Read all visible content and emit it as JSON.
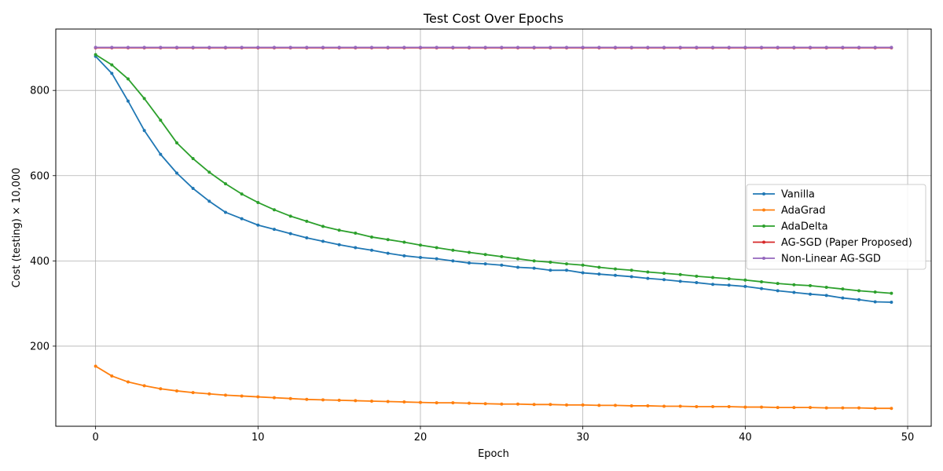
{
  "chart_data": {
    "type": "line",
    "title": "Test Cost Over Epochs",
    "xlabel": "Epoch",
    "ylabel": "Cost (testing) × 10,000",
    "xlim": [
      -2.45,
      51.45
    ],
    "ylim": [
      12,
      944
    ],
    "xticks": [
      0,
      10,
      20,
      30,
      40,
      50
    ],
    "yticks": [
      200,
      400,
      600,
      800
    ],
    "grid": true,
    "legend": "center-right",
    "x": [
      0,
      1,
      2,
      3,
      4,
      5,
      6,
      7,
      8,
      9,
      10,
      11,
      12,
      13,
      14,
      15,
      16,
      17,
      18,
      19,
      20,
      21,
      22,
      23,
      24,
      25,
      26,
      27,
      28,
      29,
      30,
      31,
      32,
      33,
      34,
      35,
      36,
      37,
      38,
      39,
      40,
      41,
      42,
      43,
      44,
      45,
      46,
      47,
      48,
      49
    ],
    "series": [
      {
        "name": "Vanilla",
        "color": "#1f77b4",
        "values": [
          880,
          840,
          775,
          706,
          650,
          606,
          570,
          540,
          514,
          499,
          484,
          474,
          464,
          454,
          446,
          438,
          431,
          425,
          418,
          412,
          408,
          405,
          400,
          395,
          393,
          390,
          385,
          383,
          378,
          378,
          372,
          369,
          366,
          363,
          359,
          356,
          352,
          349,
          345,
          343,
          340,
          335,
          330,
          326,
          322,
          319,
          313,
          309,
          304,
          303
        ]
      },
      {
        "name": "AdaGrad",
        "color": "#ff7f0e",
        "values": [
          153,
          130,
          116,
          107,
          100,
          95,
          91,
          88,
          85,
          83,
          81,
          79,
          77,
          75,
          74,
          73,
          72,
          71,
          70,
          69,
          68,
          67,
          67,
          66,
          65,
          64,
          64,
          63,
          63,
          62,
          62,
          61,
          61,
          60,
          60,
          59,
          59,
          58,
          58,
          58,
          57,
          57,
          56,
          56,
          56,
          55,
          55,
          55,
          54,
          54
        ]
      },
      {
        "name": "AdaDelta",
        "color": "#2ca02c",
        "values": [
          884,
          860,
          827,
          781,
          730,
          677,
          640,
          608,
          581,
          557,
          537,
          520,
          505,
          493,
          481,
          472,
          465,
          456,
          450,
          444,
          437,
          431,
          425,
          420,
          415,
          410,
          405,
          400,
          397,
          393,
          390,
          385,
          381,
          378,
          374,
          371,
          368,
          364,
          361,
          358,
          355,
          351,
          347,
          344,
          342,
          338,
          334,
          330,
          327,
          324
        ]
      },
      {
        "name": "AG-SGD (Paper Proposed)",
        "color": "#d62728",
        "values": [
          900,
          900,
          900,
          900,
          900,
          900,
          900,
          900,
          900,
          900,
          900,
          900,
          900,
          900,
          900,
          900,
          900,
          900,
          900,
          900,
          900,
          900,
          900,
          900,
          900,
          900,
          900,
          900,
          900,
          900,
          900,
          900,
          900,
          900,
          900,
          900,
          900,
          900,
          900,
          900,
          900,
          900,
          900,
          900,
          900,
          900,
          900,
          900,
          900,
          900
        ]
      },
      {
        "name": "Non-Linear AG-SGD",
        "color": "#9467bd",
        "values": [
          901,
          901,
          901,
          901,
          901,
          901,
          901,
          901,
          901,
          901,
          901,
          901,
          901,
          901,
          901,
          901,
          901,
          901,
          901,
          901,
          901,
          901,
          901,
          901,
          901,
          901,
          901,
          901,
          901,
          901,
          901,
          901,
          901,
          901,
          901,
          901,
          901,
          901,
          901,
          901,
          901,
          901,
          901,
          901,
          901,
          901,
          901,
          901,
          901,
          901
        ]
      }
    ]
  }
}
